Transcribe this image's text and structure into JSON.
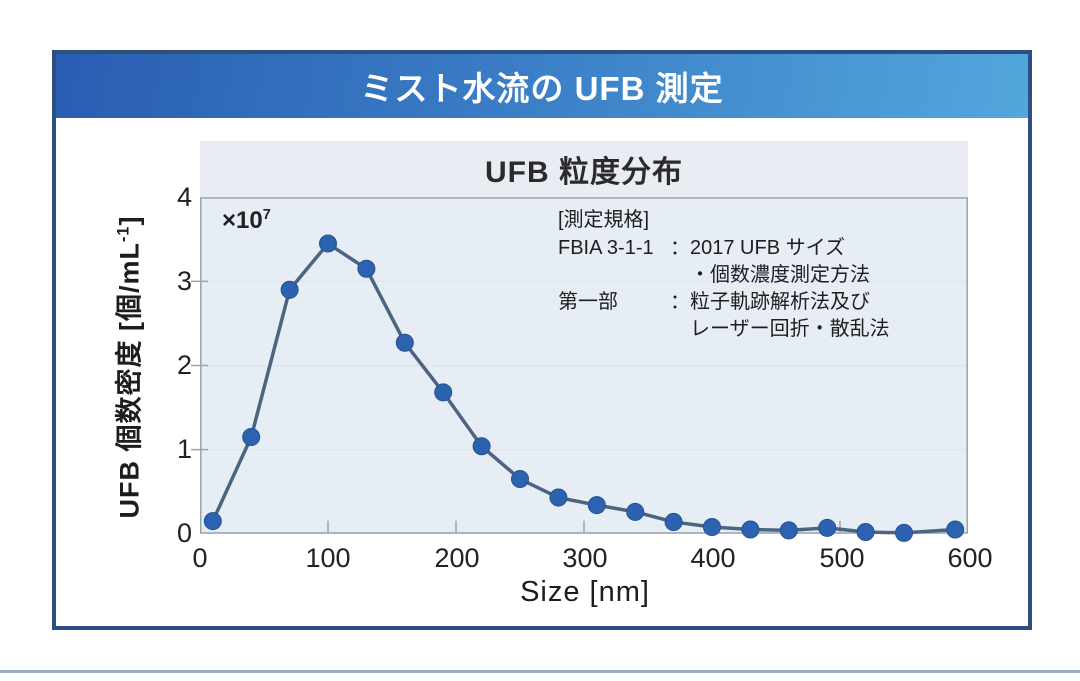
{
  "header": {
    "title": "ミスト水流の UFB 測定"
  },
  "chart": {
    "title": "UFB 粒度分布",
    "exponent_prefix": "×10",
    "exponent_sup": "7",
    "y_label_prefix": "UFB 個数密度 [個/mL",
    "y_label_sup": "-1",
    "y_label_suffix": "]",
    "x_axis_label": "Size [nm]",
    "annotation": {
      "title": "[測定規格]",
      "rows": [
        {
          "label": "FBIA 3-1-1",
          "sep": "：",
          "value": "2017 UFB サイズ"
        },
        {
          "label": "",
          "sep": "",
          "value": "・個数濃度測定方法"
        },
        {
          "label": "第一部",
          "sep": "：",
          "value": "粒子軌跡解析法及び"
        },
        {
          "label": "",
          "sep": "",
          "value": "レーザー回折・散乱法"
        }
      ]
    }
  },
  "chart_data": {
    "type": "line",
    "title": "UFB 粒度分布",
    "xlabel": "Size [nm]",
    "ylabel": "UFB 個数密度 [個/mL⁻¹]",
    "y_scale_note": "×10⁷",
    "xlim": [
      0,
      600
    ],
    "ylim": [
      0,
      4
    ],
    "x_ticks": [
      0,
      100,
      200,
      300,
      400,
      500,
      600
    ],
    "y_ticks": [
      0,
      1,
      2,
      3,
      4
    ],
    "x": [
      10,
      40,
      70,
      100,
      130,
      160,
      190,
      220,
      250,
      280,
      310,
      340,
      370,
      400,
      430,
      460,
      490,
      520,
      550,
      590
    ],
    "y": [
      0.15,
      1.15,
      2.9,
      3.45,
      3.15,
      2.27,
      1.68,
      1.04,
      0.65,
      0.43,
      0.34,
      0.26,
      0.14,
      0.08,
      0.05,
      0.04,
      0.07,
      0.02,
      0.01,
      0.05
    ],
    "legend": [],
    "grid": "faint horizontal lines at y = 1, 2, 3",
    "line_color": "#4d6480",
    "marker_color": "#2d62b0",
    "axis_color": "#9aa3ae",
    "grid_color": "#dae2ec",
    "plot_bg": "#e7edf4"
  }
}
